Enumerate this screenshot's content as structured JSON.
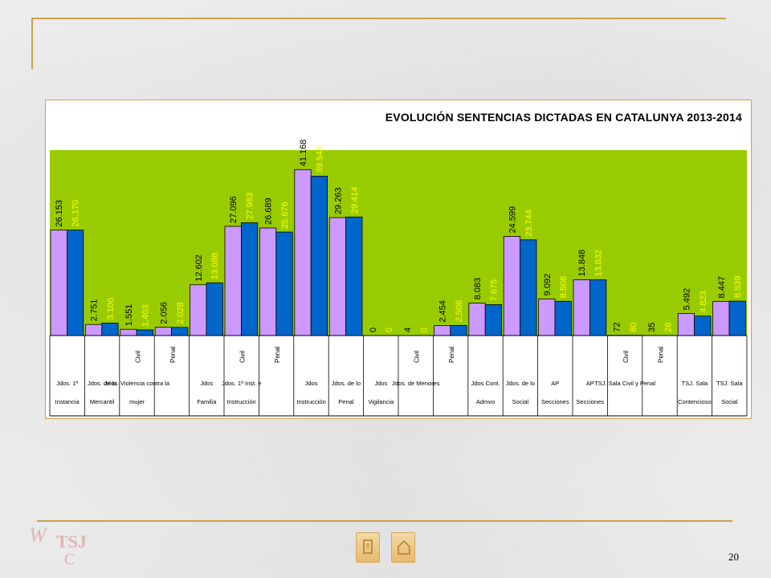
{
  "slide": {
    "page_number": "20"
  },
  "nav": {
    "prev_icon": "document-icon",
    "home_icon": "home-icon"
  },
  "colors": {
    "plot_bg": "#99CC00",
    "series_2013": "#CC99FF",
    "series_2014": "#0066CC",
    "label_2013": "#000000",
    "label_2014": "#FFFF00",
    "frame": "#C9A24B"
  },
  "chart_data": {
    "type": "bar",
    "title": "EVOLUCIÓN SENTENCIAS DICTADAS EN CATALUNYA 2013-2014",
    "ylim": [
      0,
      46000
    ],
    "grid": false,
    "legend": "none",
    "groups": [
      {
        "line1": "Jdos. 1ª",
        "line2": "Instancia",
        "sub": ""
      },
      {
        "line1": "Jdos. de lo",
        "line2": "Mercantil",
        "sub": ""
      },
      {
        "line1": "Jdos. Violencia contra la",
        "line2": "mujer",
        "sub": "Civil"
      },
      {
        "line1": "",
        "line2": "",
        "sub": "Penal"
      },
      {
        "line1": "Jdos",
        "line2": "Familia",
        "sub": ""
      },
      {
        "line1": "Jdos. 1ª Inst. e",
        "line2": "Instrucción",
        "sub": "Civil"
      },
      {
        "line1": "",
        "line2": "",
        "sub": "Penal"
      },
      {
        "line1": "Jdos",
        "line2": "Instrucción",
        "sub": ""
      },
      {
        "line1": "Jdos. de lo",
        "line2": "Penal",
        "sub": ""
      },
      {
        "line1": "Jdos",
        "line2": "Vigilancia",
        "sub": ""
      },
      {
        "line1": "Jdos. de Menores",
        "line2": "",
        "sub": "Civil"
      },
      {
        "line1": "",
        "line2": "",
        "sub": "Penal"
      },
      {
        "line1": "Jdos Cont.",
        "line2": "Admvo",
        "sub": ""
      },
      {
        "line1": "Jdos. de lo",
        "line2": "Social",
        "sub": ""
      },
      {
        "line1": "AP",
        "line2": "Secciones",
        "sub": ""
      },
      {
        "line1": "AP",
        "line2": "Secciones",
        "sub": ""
      },
      {
        "line1": "TSJ. Sala Civil y Penal",
        "line2": "",
        "sub": "Civil"
      },
      {
        "line1": "",
        "line2": "",
        "sub": "Penal"
      },
      {
        "line1": "TSJ. Sala",
        "line2": "Contencioso",
        "sub": ""
      },
      {
        "line1": "TSJ. Sala",
        "line2": "Social",
        "sub": ""
      }
    ],
    "series": [
      {
        "values": [
          26153,
          2751,
          1551,
          2056,
          12602,
          27096,
          26689,
          41168,
          29263,
          0,
          4,
          2454,
          8083,
          24599,
          9092,
          13848,
          72,
          35,
          5492,
          8447
        ],
        "labels": [
          "26.153",
          "2.751",
          "1.551",
          "2.056",
          "12.602",
          "27.096",
          "26.689",
          "41.168",
          "29.263",
          "0",
          "4",
          "2.454",
          "8.083",
          "24.599",
          "9.092",
          "13.848",
          "72",
          "35",
          "5.492",
          "8.447"
        ]
      },
      {
        "values": [
          26170,
          3106,
          1403,
          2028,
          13088,
          27983,
          25676,
          39548,
          29414,
          0,
          0,
          2508,
          7675,
          23744,
          8508,
          13832,
          80,
          26,
          4823,
          8539
        ],
        "labels": [
          "26.170",
          "3.106",
          "1.403",
          "2.028",
          "13.088",
          "27.983",
          "25.676",
          "39.548",
          "29.414",
          "0",
          "0",
          "2.508",
          "7.675",
          "23.744",
          "8.508",
          "13.832",
          "80",
          "26",
          "4.823",
          "8.539"
        ]
      }
    ]
  }
}
